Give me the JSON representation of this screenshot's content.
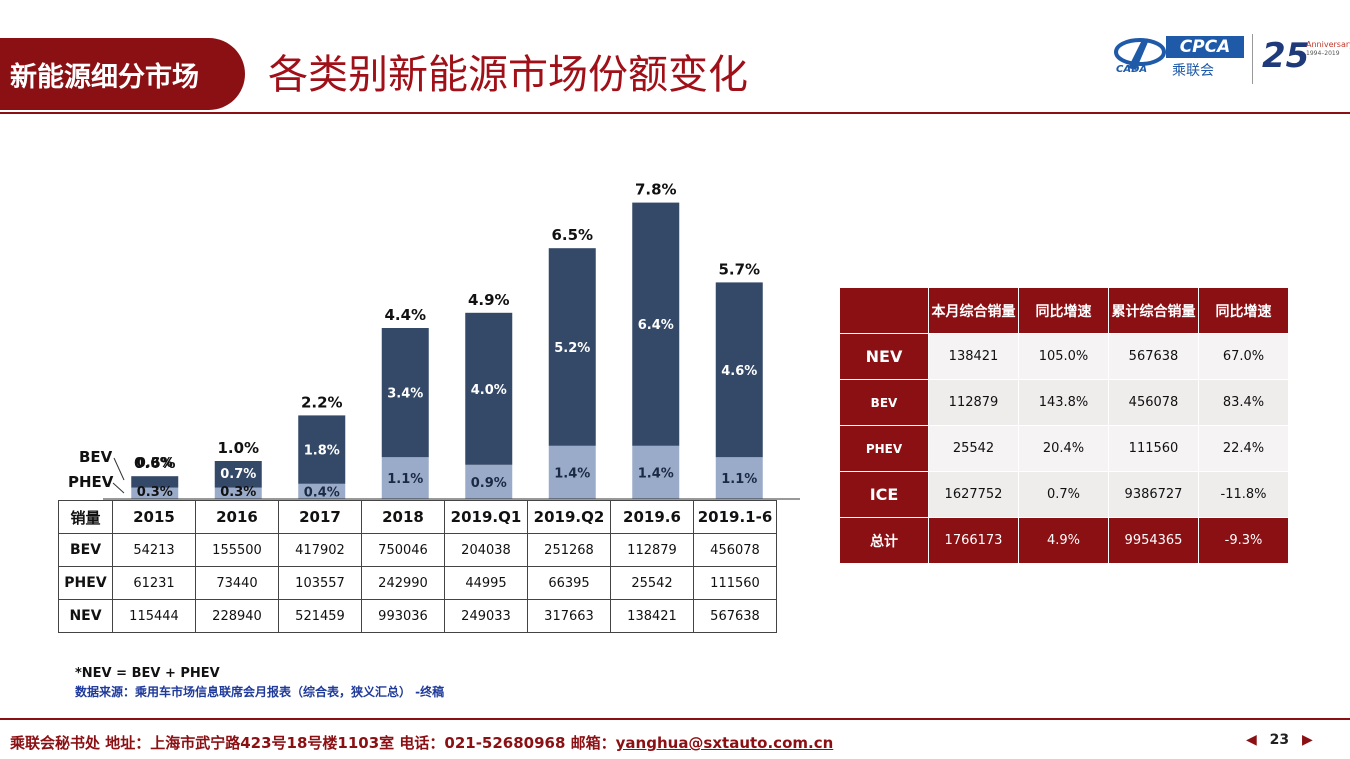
{
  "header": {
    "section_label": "新能源细分市场",
    "title": "各类别新能源市场份额变化",
    "logo_cpca": "CPCA",
    "logo_cpca_cn": "乘联会",
    "logo_cada": "CADA",
    "anniv_num": "25",
    "anniv_word": "Anniversary",
    "anniv_years": "1994–2019"
  },
  "chart_data": {
    "type": "bar",
    "stacked": true,
    "categories": [
      "2015",
      "2016",
      "2017",
      "2018",
      "2019.Q1",
      "2019.Q2",
      "2019.6",
      "2019.1-6"
    ],
    "series": [
      {
        "name": "PHEV",
        "values": [
          0.3,
          0.3,
          0.4,
          1.1,
          0.9,
          1.4,
          1.4,
          1.1
        ],
        "labels": [
          "0.3%",
          "0.3%",
          "0.4%",
          "1.1%",
          "0.9%",
          "1.4%",
          "1.4%",
          "1.1%"
        ],
        "color": "#9aabc9"
      },
      {
        "name": "BEV",
        "values": [
          0.3,
          0.7,
          1.8,
          3.4,
          4.0,
          5.2,
          6.4,
          4.6
        ],
        "labels": [
          "0.3%",
          "0.7%",
          "1.8%",
          "3.4%",
          "4.0%",
          "5.2%",
          "6.4%",
          "4.6%"
        ],
        "color": "#344867"
      }
    ],
    "totals": [
      0.6,
      1.0,
      2.2,
      4.4,
      4.9,
      6.5,
      7.8,
      5.7
    ],
    "total_labels": [
      "0.6%",
      "1.0%",
      "2.2%",
      "4.4%",
      "4.9%",
      "6.5%",
      "7.8%",
      "5.7%"
    ],
    "ylim": [
      0,
      8.0
    ],
    "grid": false,
    "legend_callouts": [
      "BEV",
      "PHEV"
    ]
  },
  "data_table": {
    "corner": "销量",
    "rows": [
      {
        "label": "BEV",
        "values": [
          "54213",
          "155500",
          "417902",
          "750046",
          "204038",
          "251268",
          "112879",
          "456078"
        ]
      },
      {
        "label": "PHEV",
        "values": [
          "61231",
          "73440",
          "103557",
          "242990",
          "44995",
          "66395",
          "25542",
          "111560"
        ]
      },
      {
        "label": "NEV",
        "values": [
          "115444",
          "228940",
          "521459",
          "993036",
          "249033",
          "317663",
          "138421",
          "567638"
        ]
      }
    ]
  },
  "summary_table": {
    "headers": [
      "",
      "本月综合销量",
      "同比增速",
      "累计综合销量",
      "同比增速"
    ],
    "rows": [
      {
        "label": "NEV",
        "values": [
          "138421",
          "105.0%",
          "567638",
          "67.0%"
        ]
      },
      {
        "label": "BEV",
        "values": [
          "112879",
          "143.8%",
          "456078",
          "83.4%"
        ]
      },
      {
        "label": "PHEV",
        "values": [
          "25542",
          "20.4%",
          "111560",
          "22.4%"
        ]
      },
      {
        "label": "ICE",
        "values": [
          "1627752",
          "0.7%",
          "9386727",
          "-11.8%"
        ]
      }
    ],
    "total": {
      "label": "总计",
      "values": [
        "1766173",
        "4.9%",
        "9954365",
        "-9.3%"
      ]
    }
  },
  "notes": {
    "formula": "*NEV = BEV + PHEV",
    "source": "数据来源：乘用车市场信息联席会月报表（综合表，狭义汇总） -终稿"
  },
  "footer": {
    "text": "乘联会秘书处   地址：上海市武宁路423号18号楼1103室  电话：021-52680968   邮箱：",
    "email": "yanghua@sxtauto.com.cn",
    "page_number": "23",
    "prev": "◀",
    "next": "▶"
  },
  "colors": {
    "brand": "#8b1014",
    "bev": "#344867",
    "phev": "#9aabc9"
  }
}
